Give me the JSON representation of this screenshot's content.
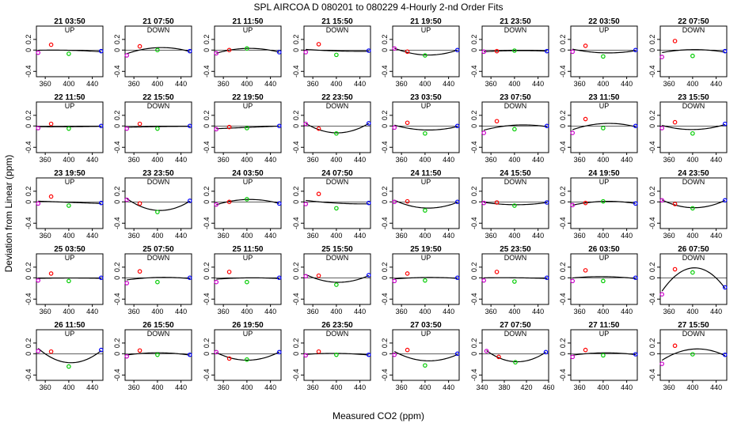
{
  "figure": {
    "title": "SPL   AIRCOA D   080201 to 080229  4-Hourly 2-nd Order Fits",
    "xlabel": "Measured CO2 (ppm)",
    "ylabel": "Deviation from Linear (ppm)"
  },
  "colors": {
    "curve": "#000000",
    "point_low": "#cc00cc",
    "point_mid_low": "#ff0000",
    "point_mid_high": "#00cc00",
    "point_high": "#0000ff"
  },
  "chart_data": {
    "type": "scatter",
    "layout": {
      "rows": 5,
      "cols": 8
    },
    "x_ticks_default": [
      360,
      400,
      440
    ],
    "x_ticks_alt": [
      340,
      380,
      420,
      460
    ],
    "y_ticks": [
      -0.4,
      0,
      0.2
    ],
    "y_tick_labels": [
      "-0.4",
      "0",
      "0.2"
    ],
    "xlim_default": [
      345,
      458
    ],
    "xlim_alt": [
      340,
      460
    ],
    "ylim": [
      -0.5,
      0.45
    ],
    "point_x": [
      348,
      370,
      400,
      455
    ],
    "panels": [
      {
        "title": "21 03:50",
        "dir": "UP",
        "y": [
          -0.05,
          0.1,
          -0.07,
          -0.02
        ]
      },
      {
        "title": "21 07:50",
        "dir": "DOWN",
        "y": [
          -0.1,
          0.07,
          0.0,
          -0.02
        ]
      },
      {
        "title": "21 11:50",
        "dir": "UP",
        "y": [
          -0.06,
          0.0,
          0.03,
          -0.04
        ]
      },
      {
        "title": "21 15:50",
        "dir": "DOWN",
        "y": [
          -0.04,
          0.11,
          -0.09,
          -0.01
        ]
      },
      {
        "title": "21 19:50",
        "dir": "UP",
        "y": [
          0.03,
          -0.03,
          -0.1,
          0.0
        ]
      },
      {
        "title": "21 23:50",
        "dir": "DOWN",
        "y": [
          -0.03,
          -0.02,
          -0.01,
          -0.02
        ]
      },
      {
        "title": "22 03:50",
        "dir": "UP",
        "y": [
          -0.03,
          0.08,
          -0.12,
          0.0
        ]
      },
      {
        "title": "22 07:50",
        "dir": "DOWN",
        "y": [
          -0.13,
          0.17,
          -0.11,
          -0.02
        ]
      },
      {
        "title": "22 11:50",
        "dir": "UP",
        "y": [
          -0.04,
          0.04,
          -0.05,
          0.0
        ]
      },
      {
        "title": "22 15:50",
        "dir": "DOWN",
        "y": [
          -0.05,
          0.04,
          -0.05,
          0.0
        ]
      },
      {
        "title": "22 19:50",
        "dir": "UP",
        "y": [
          -0.06,
          -0.02,
          -0.04,
          0.0
        ]
      },
      {
        "title": "22 23:50",
        "dir": "DOWN",
        "y": [
          0.04,
          -0.05,
          -0.14,
          0.05
        ]
      },
      {
        "title": "23 03:50",
        "dir": "UP",
        "y": [
          -0.03,
          0.06,
          -0.14,
          0.0
        ]
      },
      {
        "title": "23 07:50",
        "dir": "DOWN",
        "y": [
          -0.13,
          0.09,
          -0.06,
          0.0
        ]
      },
      {
        "title": "23 11:50",
        "dir": "UP",
        "y": [
          -0.13,
          0.13,
          -0.04,
          0.0
        ]
      },
      {
        "title": "23 15:50",
        "dir": "DOWN",
        "y": [
          -0.04,
          0.07,
          -0.14,
          0.04
        ]
      },
      {
        "title": "23 19:50",
        "dir": "UP",
        "y": [
          -0.03,
          0.1,
          -0.07,
          -0.02
        ]
      },
      {
        "title": "23 23:50",
        "dir": "DOWN",
        "y": [
          0.04,
          -0.03,
          -0.19,
          0.02
        ]
      },
      {
        "title": "24 03:50",
        "dir": "UP",
        "y": [
          -0.05,
          0.0,
          0.05,
          -0.03
        ]
      },
      {
        "title": "24 07:50",
        "dir": "DOWN",
        "y": [
          -0.04,
          0.15,
          -0.12,
          -0.02
        ]
      },
      {
        "title": "24 11:50",
        "dir": "UP",
        "y": [
          0.0,
          0.01,
          -0.16,
          0.0
        ]
      },
      {
        "title": "24 15:50",
        "dir": "DOWN",
        "y": [
          -0.02,
          -0.01,
          -0.07,
          -0.01
        ]
      },
      {
        "title": "24 19:50",
        "dir": "UP",
        "y": [
          -0.06,
          -0.02,
          0.01,
          -0.03
        ]
      },
      {
        "title": "24 23:50",
        "dir": "DOWN",
        "y": [
          0.03,
          -0.04,
          -0.12,
          0.03
        ]
      },
      {
        "title": "25 03:50",
        "dir": "UP",
        "y": [
          -0.05,
          0.08,
          -0.06,
          0.0
        ]
      },
      {
        "title": "25 07:50",
        "dir": "DOWN",
        "y": [
          -0.1,
          0.12,
          -0.08,
          0.0
        ]
      },
      {
        "title": "25 11:50",
        "dir": "UP",
        "y": [
          -0.08,
          0.11,
          -0.08,
          0.0
        ]
      },
      {
        "title": "25 15:50",
        "dir": "DOWN",
        "y": [
          0.03,
          0.04,
          -0.13,
          0.05
        ]
      },
      {
        "title": "25 19:50",
        "dir": "UP",
        "y": [
          -0.06,
          0.08,
          -0.05,
          0.0
        ]
      },
      {
        "title": "25 23:50",
        "dir": "DOWN",
        "y": [
          -0.05,
          0.11,
          -0.07,
          0.0
        ]
      },
      {
        "title": "26 03:50",
        "dir": "UP",
        "y": [
          -0.06,
          0.14,
          -0.06,
          0.0
        ]
      },
      {
        "title": "26 07:50",
        "dir": "DOWN",
        "y": [
          -0.31,
          0.16,
          0.1,
          -0.18
        ]
      },
      {
        "title": "26 11:50",
        "dir": "UP",
        "y": [
          0.05,
          0.04,
          -0.24,
          0.07
        ]
      },
      {
        "title": "26 15:50",
        "dir": "DOWN",
        "y": [
          -0.05,
          0.06,
          -0.02,
          -0.02
        ]
      },
      {
        "title": "26 19:50",
        "dir": "UP",
        "y": [
          0.03,
          -0.09,
          -0.11,
          0.03
        ]
      },
      {
        "title": "26 23:50",
        "dir": "DOWN",
        "y": [
          -0.03,
          0.04,
          -0.02,
          -0.02
        ]
      },
      {
        "title": "27 03:50",
        "dir": "UP",
        "y": [
          -0.02,
          0.07,
          -0.22,
          0.0
        ]
      },
      {
        "title": "27 07:50",
        "dir": "DOWN",
        "y": [
          0.05,
          -0.06,
          -0.16,
          0.03
        ]
      },
      {
        "title": "27 11:50",
        "dir": "UP",
        "y": [
          -0.06,
          0.07,
          -0.03,
          -0.01
        ]
      },
      {
        "title": "27 15:50",
        "dir": "DOWN",
        "y": [
          -0.19,
          0.15,
          -0.01,
          -0.02
        ]
      }
    ]
  }
}
